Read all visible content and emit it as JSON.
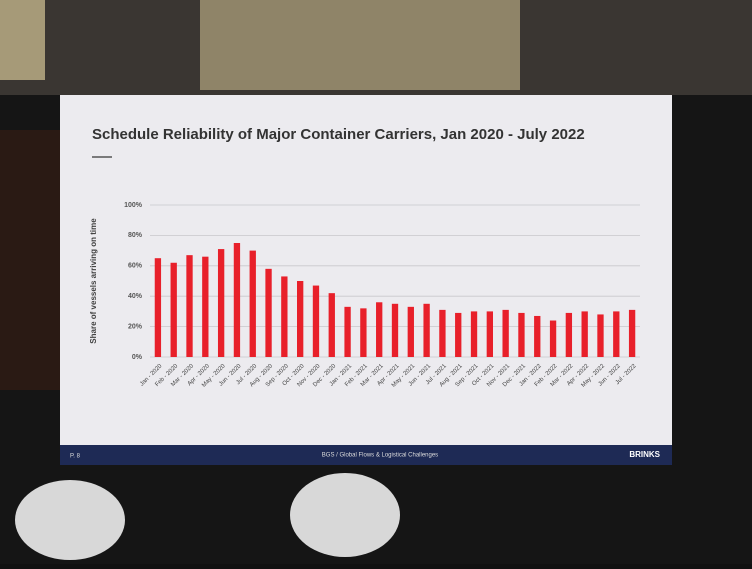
{
  "chart_data": {
    "type": "bar",
    "title": "Schedule Reliability of Major Container Carriers, Jan 2020 - July 2022",
    "y_label": "Share of vessels arriving on time",
    "categories": [
      "Jan - 2020",
      "Feb - 2020",
      "Mar - 2020",
      "Apr - 2020",
      "May - 2020",
      "Jun - 2020",
      "Jul - 2020",
      "Aug - 2020",
      "Sep - 2020",
      "Oct - 2020",
      "Nov - 2020",
      "Dec - 2020",
      "Jan - 2021",
      "Feb - 2021",
      "Mar - 2021",
      "Apr - 2021",
      "May - 2021",
      "Jun - 2021",
      "Jul - 2021",
      "Aug - 2021",
      "Sep - 2021",
      "Oct - 2021",
      "Nov - 2021",
      "Dec - 2021",
      "Jan - 2022",
      "Feb - 2022",
      "Mar - 2022",
      "Apr - 2022",
      "May - 2022",
      "Jun - 2022",
      "Jul - 2022"
    ],
    "values": [
      65,
      62,
      67,
      66,
      71,
      75,
      70,
      58,
      53,
      50,
      47,
      42,
      33,
      32,
      36,
      35,
      33,
      35,
      31,
      29,
      30,
      30,
      31,
      29,
      27,
      24,
      29,
      30,
      28,
      30,
      31
    ],
    "color": "#e8202a",
    "ylim": [
      0,
      100
    ],
    "yticks": [
      {
        "value": 0,
        "label": "0%"
      },
      {
        "value": 20,
        "label": "20%"
      },
      {
        "value": 40,
        "label": "40%"
      },
      {
        "value": 60,
        "label": "60%"
      },
      {
        "value": 80,
        "label": "80%"
      },
      {
        "value": 100,
        "label": "100%"
      }
    ],
    "grid": true
  },
  "footer": {
    "page": "P. 8",
    "center": "BGS / Global Flows & Logistical Challenges",
    "logo": "BRINKS"
  }
}
